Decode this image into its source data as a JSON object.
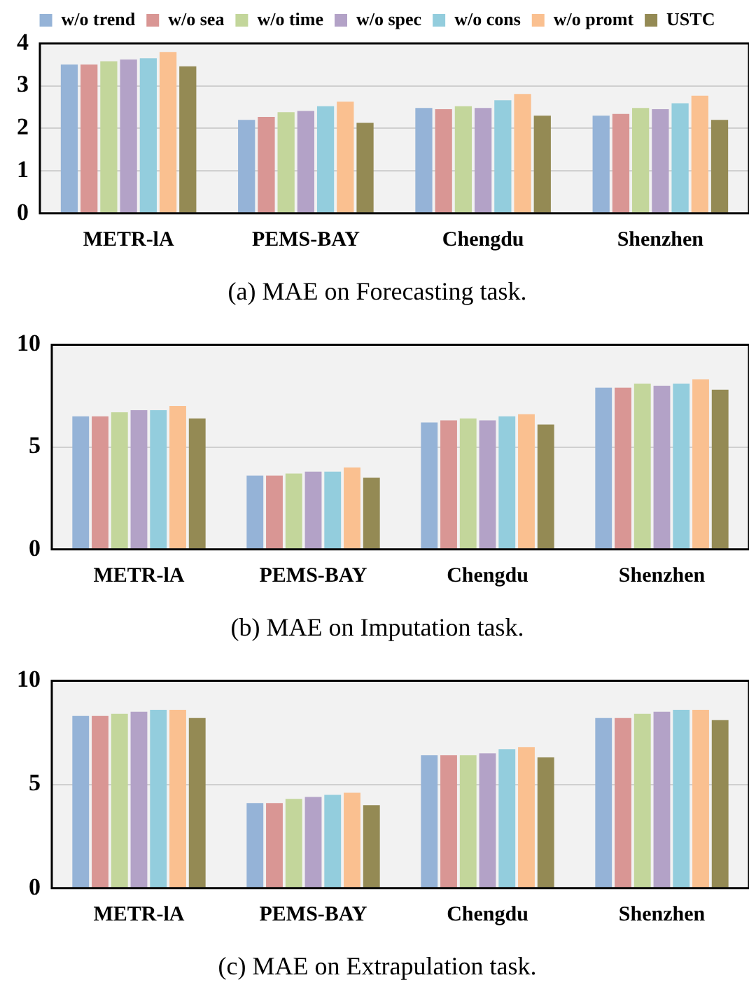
{
  "chart_data": [
    {
      "type": "bar",
      "title": "(a) MAE on Forecasting task.",
      "categories": [
        "METR-lA",
        "PEMS-BAY",
        "Chengdu",
        "Shenzhen"
      ],
      "ylim": [
        0,
        4
      ],
      "yticks": [
        0,
        1,
        2,
        3,
        4
      ],
      "grid": "y",
      "legend": "top",
      "series": [
        {
          "name": "w/o trend",
          "color": "#95b3d7",
          "values": [
            3.5,
            2.2,
            2.48,
            2.3
          ]
        },
        {
          "name": "w/o sea",
          "color": "#d99694",
          "values": [
            3.5,
            2.27,
            2.45,
            2.34
          ]
        },
        {
          "name": "w/o time",
          "color": "#c3d69b",
          "values": [
            3.58,
            2.38,
            2.52,
            2.48
          ]
        },
        {
          "name": "w/o spec",
          "color": "#b3a2c7",
          "values": [
            3.62,
            2.41,
            2.48,
            2.45
          ]
        },
        {
          "name": "w/o cons",
          "color": "#93cddd",
          "values": [
            3.65,
            2.52,
            2.66,
            2.59
          ]
        },
        {
          "name": "w/o promt",
          "color": "#fac090",
          "values": [
            3.8,
            2.63,
            2.81,
            2.77
          ]
        },
        {
          "name": "USTC",
          "color": "#948a54",
          "values": [
            3.46,
            2.13,
            2.3,
            2.2
          ]
        }
      ]
    },
    {
      "type": "bar",
      "title": "(b) MAE on Imputation task.",
      "categories": [
        "METR-lA",
        "PEMS-BAY",
        "Chengdu",
        "Shenzhen"
      ],
      "ylim": [
        0,
        10
      ],
      "yticks": [
        0,
        5,
        10
      ],
      "grid": "y",
      "series": [
        {
          "color": "#95b3d7",
          "values": [
            6.5,
            3.6,
            6.2,
            7.9
          ]
        },
        {
          "color": "#d99694",
          "values": [
            6.5,
            3.6,
            6.3,
            7.9
          ]
        },
        {
          "color": "#c3d69b",
          "values": [
            6.7,
            3.7,
            6.4,
            8.1
          ]
        },
        {
          "color": "#b3a2c7",
          "values": [
            6.8,
            3.8,
            6.3,
            8.0
          ]
        },
        {
          "color": "#93cddd",
          "values": [
            6.8,
            3.8,
            6.5,
            8.1
          ]
        },
        {
          "color": "#fac090",
          "values": [
            7.0,
            4.0,
            6.6,
            8.3
          ]
        },
        {
          "color": "#948a54",
          "values": [
            6.4,
            3.5,
            6.1,
            7.8
          ]
        }
      ]
    },
    {
      "type": "bar",
      "title": "(c) MAE on Extrapulation task.",
      "categories": [
        "METR-lA",
        "PEMS-BAY",
        "Chengdu",
        "Shenzhen"
      ],
      "ylim": [
        0,
        10
      ],
      "yticks": [
        0,
        5,
        10
      ],
      "grid": "y",
      "series": [
        {
          "color": "#95b3d7",
          "values": [
            8.3,
            4.1,
            6.4,
            8.2
          ]
        },
        {
          "color": "#d99694",
          "values": [
            8.3,
            4.1,
            6.4,
            8.2
          ]
        },
        {
          "color": "#c3d69b",
          "values": [
            8.4,
            4.3,
            6.4,
            8.4
          ]
        },
        {
          "color": "#b3a2c7",
          "values": [
            8.5,
            4.4,
            6.5,
            8.5
          ]
        },
        {
          "color": "#93cddd",
          "values": [
            8.6,
            4.5,
            6.7,
            8.6
          ]
        },
        {
          "color": "#fac090",
          "values": [
            8.6,
            4.6,
            6.8,
            8.6
          ]
        },
        {
          "color": "#948a54",
          "values": [
            8.2,
            4.0,
            6.3,
            8.1
          ]
        }
      ]
    }
  ]
}
